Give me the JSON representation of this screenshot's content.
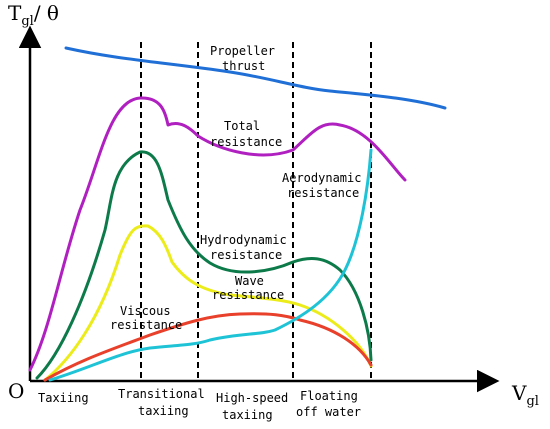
{
  "axes": {
    "y_label": "T",
    "y_subscript": "gl",
    "y_suffix": "/ θ",
    "origin": "O",
    "x_label": "V",
    "x_subscript": "gl"
  },
  "phases": [
    "Taxiing",
    "Transitional",
    "taxiing",
    "High-speed",
    "taxiing",
    "Floating",
    "off water"
  ],
  "curves": [
    {
      "id": "propeller-thrust",
      "label_lines": [
        "Propeller",
        "thrust"
      ],
      "color": "#1f6fd6"
    },
    {
      "id": "total-resistance",
      "label_lines": [
        "Total",
        "resistance"
      ],
      "color": "#b020c0"
    },
    {
      "id": "aerodynamic-resistance",
      "label_lines": [
        "Aerodynamic",
        "resistance"
      ],
      "color": "#1fc3d6"
    },
    {
      "id": "hydrodynamic-resistance",
      "label_lines": [
        "Hydrodynamic",
        "resistance"
      ],
      "color": "#0d7a4a"
    },
    {
      "id": "wave-resistance",
      "label_lines": [
        "Wave",
        "resistance"
      ],
      "color": "#ecec1a"
    },
    {
      "id": "viscous-resistance",
      "label_lines": [
        "Viscous",
        "resistance"
      ],
      "color": "#e8402a"
    }
  ]
}
